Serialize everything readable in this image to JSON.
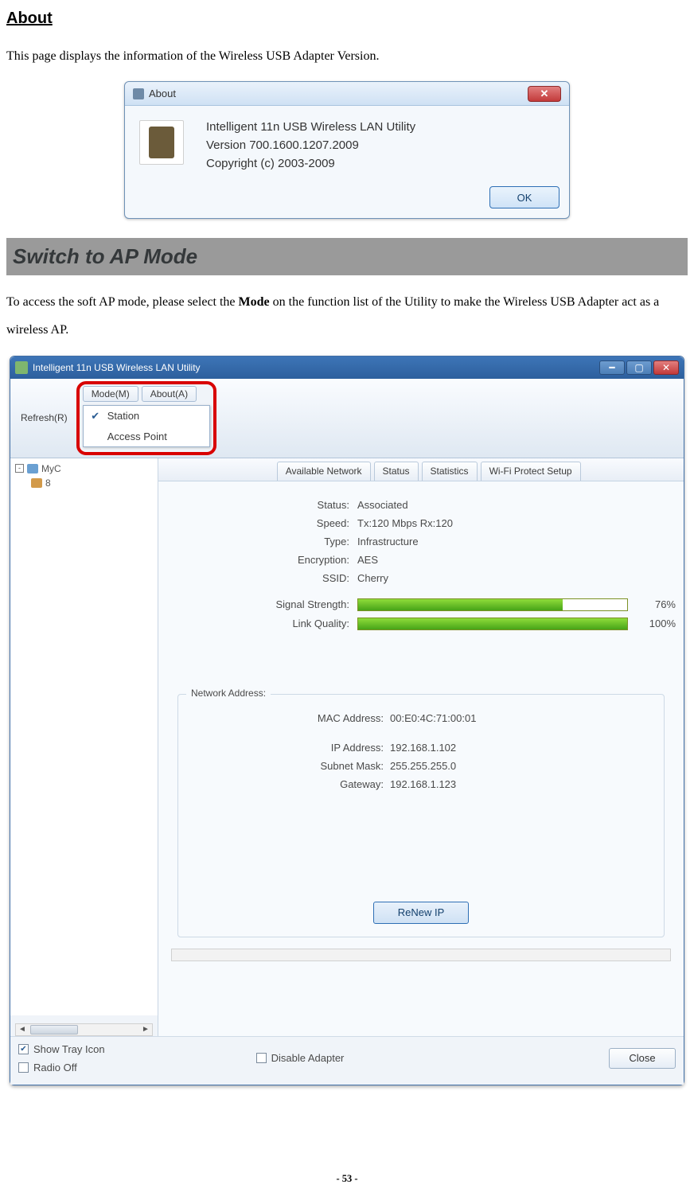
{
  "headings": {
    "about": "About",
    "switch": "Switch to AP Mode"
  },
  "paragraphs": {
    "about_desc": "This page displays the information of the Wireless USB Adapter Version.",
    "switch_pre": "To access the soft AP mode, please select the ",
    "switch_bold": "Mode",
    "switch_post": " on the function list of the Utility to make the Wireless USB Adapter act as a wireless AP."
  },
  "about_dialog": {
    "title": "About",
    "line1": "Intelligent 11n USB Wireless LAN Utility",
    "line2": "Version 700.1600.1207.2009",
    "line3": "Copyright (c) 2003-2009",
    "ok": "OK"
  },
  "utility": {
    "window_title": "Intelligent 11n USB Wireless LAN Utility",
    "menu": {
      "refresh": "Refresh(R)",
      "mode": "Mode(M)",
      "about": "About(A)"
    },
    "mode_menu": {
      "station": "Station",
      "ap": "Access Point"
    },
    "tabs": {
      "avail": "Available Network",
      "status": "Status",
      "stats": "Statistics",
      "wps": "Wi-Fi Protect Setup"
    },
    "tree": {
      "root": "MyC",
      "child": "8"
    },
    "status": {
      "labels": {
        "status": "Status:",
        "speed": "Speed:",
        "type": "Type:",
        "enc": "Encryption:",
        "ssid": "SSID:",
        "sig": "Signal Strength:",
        "lq": "Link Quality:"
      },
      "values": {
        "status": "Associated",
        "speed": "Tx:120 Mbps Rx:120",
        "type": "Infrastructure",
        "enc": "AES",
        "ssid": "Cherry"
      },
      "signal_pct": 76,
      "link_pct": 100,
      "signal_pct_txt": "76%",
      "link_pct_txt": "100%"
    },
    "net_addr": {
      "title": "Network Address:",
      "mac_l": "MAC Address:",
      "mac_v": "00:E0:4C:71:00:01",
      "ip_l": "IP Address:",
      "ip_v": "192.168.1.102",
      "sn_l": "Subnet Mask:",
      "sn_v": "255.255.255.0",
      "gw_l": "Gateway:",
      "gw_v": "192.168.1.123",
      "renew": "ReNew IP"
    },
    "footer": {
      "show_tray": "Show Tray Icon",
      "radio_off": "Radio Off",
      "disable": "Disable Adapter",
      "close": "Close"
    }
  },
  "page_number": "- 53 -",
  "colors": {
    "highlight_red": "#d80000",
    "green_bar_top": "#8fdc3a",
    "green_bar_bottom": "#47a418",
    "banner_bg": "#9a9a9a"
  }
}
